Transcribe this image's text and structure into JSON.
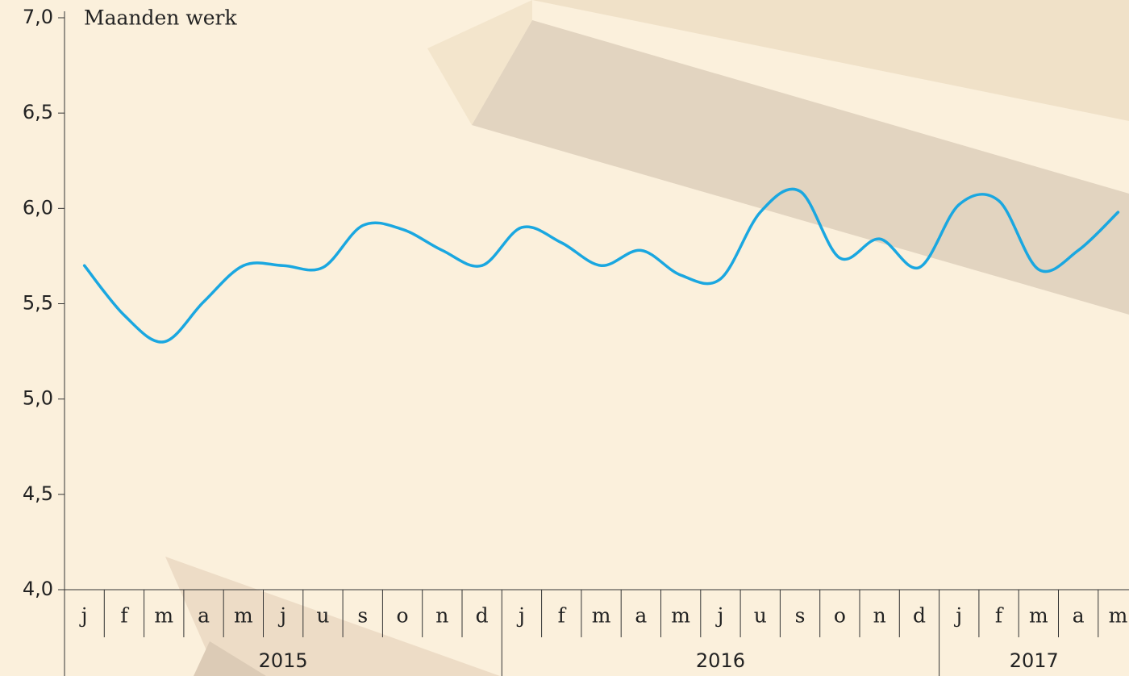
{
  "chart_data": {
    "type": "line",
    "title": "Maanden werk",
    "categories": [
      "j",
      "f",
      "m",
      "a",
      "m",
      "j",
      "u",
      "s",
      "o",
      "n",
      "d",
      "j",
      "f",
      "m",
      "a",
      "m",
      "j",
      "u",
      "s",
      "o",
      "n",
      "d",
      "j",
      "f",
      "m",
      "a",
      "m"
    ],
    "category_years": [
      "2015",
      "2015",
      "2015",
      "2015",
      "2015",
      "2015",
      "2015",
      "2015",
      "2015",
      "2015",
      "2015",
      "2016",
      "2016",
      "2016",
      "2016",
      "2016",
      "2016",
      "2016",
      "2016",
      "2016",
      "2016",
      "2016",
      "2017",
      "2017",
      "2017",
      "2017",
      "2017"
    ],
    "series": [
      {
        "color": "#1aa7e0",
        "values": [
          5.7,
          5.44,
          5.3,
          5.51,
          5.7,
          5.7,
          5.69,
          5.91,
          5.89,
          5.78,
          5.7,
          5.9,
          5.82,
          5.7,
          5.78,
          5.65,
          5.63,
          5.98,
          6.09,
          5.74,
          5.84,
          5.69,
          6.02,
          6.04,
          5.68,
          5.78,
          5.98
        ]
      }
    ],
    "ylim": [
      4,
      7
    ],
    "yticks": [
      {
        "value": 4,
        "label": "4,0"
      },
      {
        "value": 4.5,
        "label": "4,5"
      },
      {
        "value": 5,
        "label": "5,0"
      },
      {
        "value": 5.5,
        "label": "5,5"
      },
      {
        "value": 6,
        "label": "6,0"
      },
      {
        "value": 6.5,
        "label": "6,5"
      },
      {
        "value": 7,
        "label": "7,0"
      }
    ]
  }
}
